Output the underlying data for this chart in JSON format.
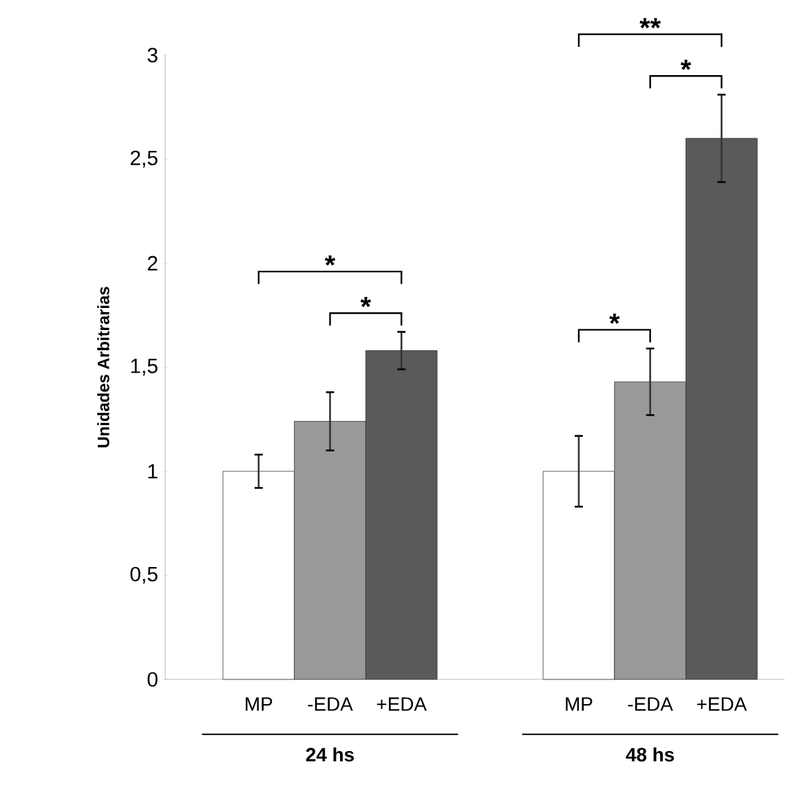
{
  "chart_data": {
    "type": "bar",
    "categories": [
      "24 hs",
      "48 hs"
    ],
    "ylabel": "Unidades Arbitrarias",
    "ylim": [
      0,
      3
    ],
    "yticks": [
      0,
      {
        "value": 0.5,
        "label": "0,5"
      },
      1,
      {
        "value": 1.5,
        "label": "1,5"
      },
      2,
      {
        "value": 2.5,
        "label": "2,5"
      },
      3
    ],
    "grid": false,
    "legend": false,
    "series": [
      {
        "name": "MP",
        "color": "#ffffff",
        "values": [
          1.0,
          1.0
        ],
        "errors": [
          0.08,
          0.17
        ]
      },
      {
        "name": "-EDA",
        "color": "#999999",
        "values": [
          1.24,
          1.43
        ],
        "errors": [
          0.14,
          0.16
        ]
      },
      {
        "name": "+EDA",
        "color": "#5a5a5a",
        "values": [
          1.58,
          2.6
        ],
        "errors": [
          0.09,
          0.21
        ]
      }
    ],
    "annotations": [
      "*",
      "*",
      "**",
      "*",
      "*"
    ]
  }
}
